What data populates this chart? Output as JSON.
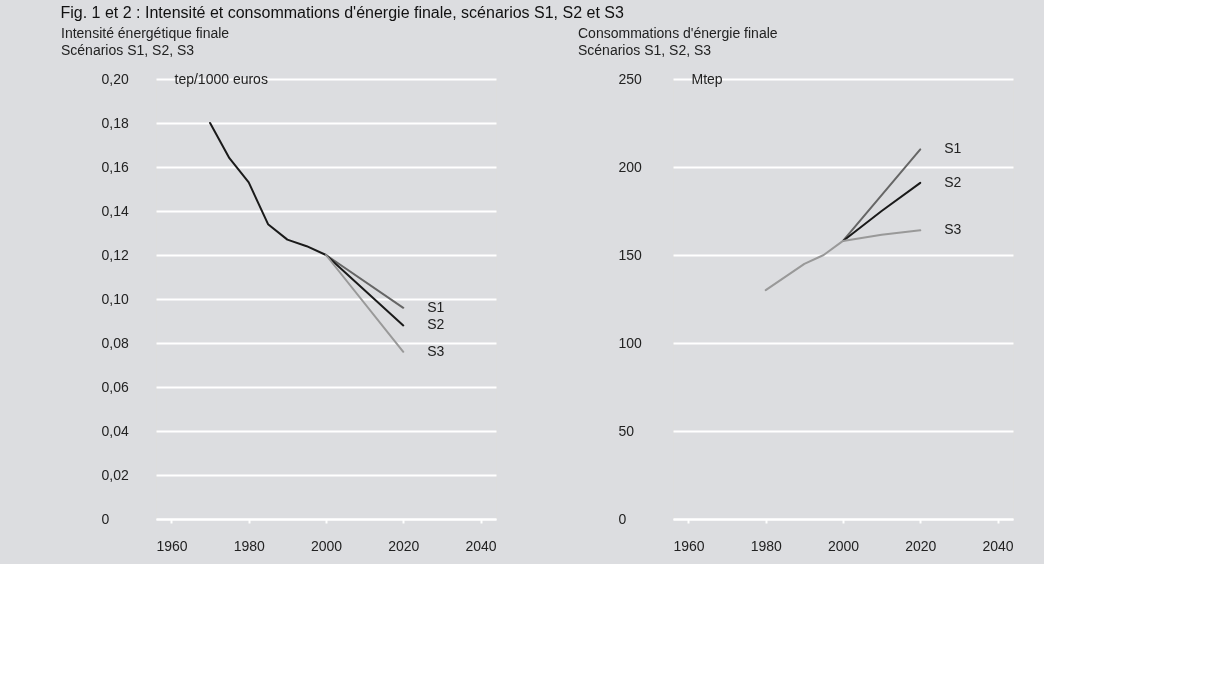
{
  "chart_data": [
    {
      "type": "line",
      "title": "Intensité énergétique finale",
      "subtitle": "Scénarios S1, S2, S3",
      "ylabel": "tep/1000 euros",
      "annotations": [
        "Fig. 1 et 2 : Intensité et consommations d'énergie finale, scénarios S1, S2 et S3"
      ],
      "xlim": [
        1956,
        2044
      ],
      "xticks": [
        1960,
        1980,
        2000,
        2020,
        2040
      ],
      "ylim": [
        0,
        0.2
      ],
      "yticks": [
        {
          "value": 0,
          "label": "0"
        },
        {
          "value": 0.02,
          "label": "0,02"
        },
        {
          "value": 0.04,
          "label": "0,04"
        },
        {
          "value": 0.06,
          "label": "0,06"
        },
        {
          "value": 0.08,
          "label": "0,08"
        },
        {
          "value": 0.1,
          "label": "0,10"
        },
        {
          "value": 0.12,
          "label": "0,12"
        },
        {
          "value": 0.14,
          "label": "0,14"
        },
        {
          "value": 0.16,
          "label": "0,16"
        },
        {
          "value": 0.18,
          "label": "0,18"
        },
        {
          "value": 0.2,
          "label": "0,20"
        }
      ],
      "grid": "y",
      "legend": false,
      "line_style": "solid",
      "marker": "none",
      "series": [
        {
          "name": "S1",
          "color": "#666666",
          "x": [
            2000,
            2020
          ],
          "values": [
            0.12,
            0.096
          ]
        },
        {
          "name": "S2",
          "color": "#1a1a1a",
          "x": [
            1970,
            1975,
            1980,
            1985,
            1990,
            1995,
            2000,
            2020
          ],
          "values": [
            0.18,
            0.164,
            0.153,
            0.134,
            0.127,
            0.124,
            0.12,
            0.088
          ]
        },
        {
          "name": "S3",
          "color": "#999999",
          "x": [
            2000,
            2020
          ],
          "values": [
            0.12,
            0.076
          ]
        }
      ]
    },
    {
      "type": "line",
      "title": "Consommations d'énergie finale",
      "subtitle": "Scénarios S1, S2, S3",
      "ylabel": "Mtep",
      "xlim": [
        1956,
        2044
      ],
      "xticks": [
        1960,
        1980,
        2000,
        2020,
        2040
      ],
      "ylim": [
        0,
        250
      ],
      "yticks": [
        0,
        50,
        100,
        150,
        200,
        250
      ],
      "grid": "y",
      "legend": false,
      "line_style": "solid",
      "marker": "none",
      "series": [
        {
          "name": "S1",
          "color": "#666666",
          "x": [
            2000,
            2020
          ],
          "values": [
            158,
            210
          ]
        },
        {
          "name": "S2",
          "color": "#1a1a1a",
          "x": [
            2000,
            2010,
            2020
          ],
          "values": [
            158,
            175,
            191
          ]
        },
        {
          "name": "S3",
          "color": "#999999",
          "x": [
            1980,
            1990,
            1995,
            2000,
            2010,
            2020
          ],
          "values": [
            130,
            145,
            150,
            158,
            161.5,
            164
          ]
        }
      ]
    }
  ]
}
